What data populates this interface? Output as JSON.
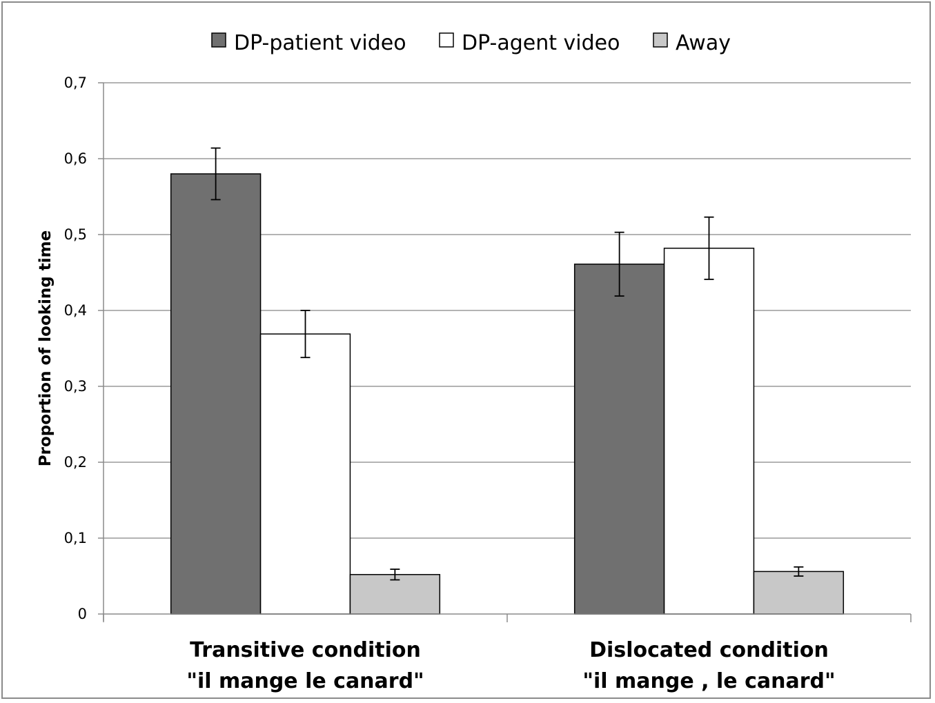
{
  "chart_data": {
    "type": "bar",
    "title": "",
    "ylabel": "Proportion of looking time",
    "ylim": [
      0,
      0.7
    ],
    "yticks": [
      "0",
      "0,1",
      "0,2",
      "0,3",
      "0,4",
      "0,5",
      "0,6",
      "0,7"
    ],
    "grid": true,
    "legend_position": "top",
    "categories": [
      {
        "line1": "Transitive condition",
        "line2": "\"il mange le canard\""
      },
      {
        "line1": "Dislocated condition",
        "line2": "\"il mange , le canard\""
      }
    ],
    "series": [
      {
        "name": "DP-patient video",
        "color": "#707070",
        "values": [
          0.58,
          0.461
        ],
        "errors": [
          0.034,
          0.042
        ]
      },
      {
        "name": "DP-agent video",
        "color": "#ffffff",
        "values": [
          0.369,
          0.482
        ],
        "errors": [
          0.031,
          0.041
        ]
      },
      {
        "name": "Away",
        "color": "#c8c8c8",
        "values": [
          0.052,
          0.056
        ],
        "errors": [
          0.007,
          0.006
        ]
      }
    ]
  }
}
